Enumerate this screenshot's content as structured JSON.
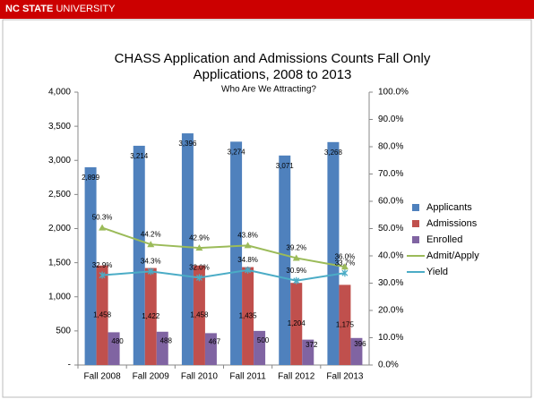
{
  "header": {
    "brand_bold": "NC STATE",
    "brand": "UNIVERSITY"
  },
  "chart_data": {
    "type": "bar",
    "title": [
      "CHASS Application and Admissions Counts Fall Only",
      "Applications, 2008 to 2013"
    ],
    "subtitle": "Who Are We Attracting?",
    "categories": [
      "Fall 2008",
      "Fall 2009",
      "Fall 2010",
      "Fall 2011",
      "Fall 2012",
      "Fall 2013"
    ],
    "ylim": [
      0,
      4000
    ],
    "yticks": [
      {
        "value": 0,
        "label": "-"
      },
      500,
      {
        "value": 1000,
        "label": "1,000"
      },
      {
        "value": 1500,
        "label": "1,500"
      },
      {
        "value": 2000,
        "label": "2,000"
      },
      {
        "value": 2500,
        "label": "2,500"
      },
      {
        "value": 3000,
        "label": "3,000"
      },
      {
        "value": 3500,
        "label": "3,500"
      },
      {
        "value": 4000,
        "label": "4,000"
      }
    ],
    "y2lim": [
      0,
      100
    ],
    "y2ticks": [
      {
        "value": 0,
        "label": "0.0%"
      },
      {
        "value": 10,
        "label": "10.0%"
      },
      {
        "value": 20,
        "label": "20.0%"
      },
      {
        "value": 30,
        "label": "30.0%"
      },
      {
        "value": 40,
        "label": "40.0%"
      },
      {
        "value": 50,
        "label": "50.0%"
      },
      {
        "value": 60,
        "label": "60.0%"
      },
      {
        "value": 70,
        "label": "70.0%"
      },
      {
        "value": 80,
        "label": "80.0%"
      },
      {
        "value": 90,
        "label": "90.0%"
      },
      {
        "value": 100,
        "label": "100.0%"
      }
    ],
    "legend": "right",
    "series": [
      {
        "name": "Applicants",
        "color": "#4f81bd",
        "values": [
          2899,
          3214,
          3396,
          3274,
          3071,
          3268
        ],
        "value_labels": [
          "2,899",
          "3,214",
          "3,396",
          "3,274",
          "3,071",
          "3,268"
        ]
      },
      {
        "name": "Admissions",
        "color": "#c0504d",
        "values": [
          1458,
          1422,
          1458,
          1435,
          1204,
          1175
        ],
        "value_labels": [
          "1,458",
          "1,422",
          "1,458",
          "1,435",
          "1,204",
          "1,175"
        ]
      },
      {
        "name": "Enrolled",
        "color": "#8064a2",
        "values": [
          480,
          488,
          467,
          500,
          372,
          396
        ]
      },
      {
        "name": "Admit/Apply",
        "type": "line",
        "axis": "y2",
        "color": "#9bbb59",
        "values": [
          50.3,
          44.2,
          42.9,
          43.8,
          39.2,
          36.0
        ],
        "value_labels": [
          "50.3%",
          "44.2%",
          "42.9%",
          "43.8%",
          "39.2%",
          "36.0%"
        ]
      },
      {
        "name": "Yield",
        "type": "line",
        "axis": "y2",
        "color": "#4bacc6",
        "values": [
          32.9,
          34.3,
          32.0,
          34.8,
          30.9,
          33.7
        ],
        "value_labels": [
          "32.9%",
          "34.3%",
          "32.0%",
          "34.8%",
          "30.9%",
          "33.7%"
        ]
      }
    ]
  }
}
